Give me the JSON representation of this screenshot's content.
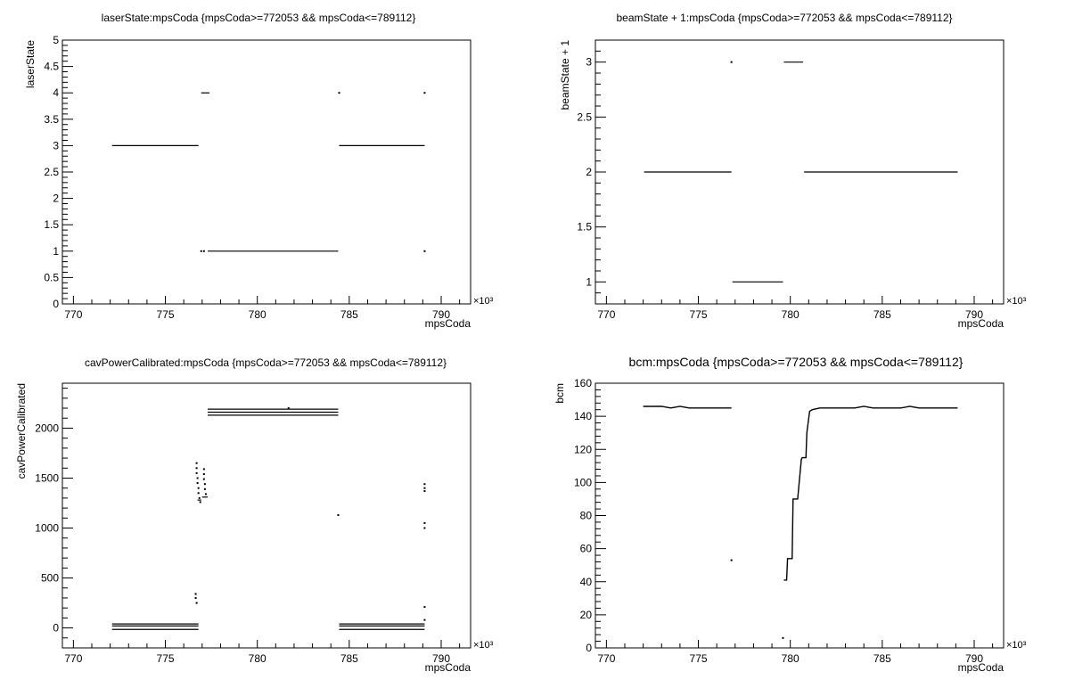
{
  "chart_data": [
    {
      "type": "scatter",
      "title": "laserState:mpsCoda {mpsCoda>=772053 && mpsCoda<=789112}",
      "xlabel": "mpsCoda",
      "ylabel": "laserState",
      "x_multiplier_label": "×10³",
      "xlim": [
        769.4,
        791.6
      ],
      "ylim": [
        0,
        5
      ],
      "xticks": [
        770,
        775,
        780,
        785,
        790
      ],
      "xtick_labels": [
        "770",
        "775",
        "780",
        "785",
        "790"
      ],
      "yticks": [
        0,
        0.5,
        1,
        1.5,
        2,
        2.5,
        3,
        3.5,
        4,
        4.5,
        5
      ],
      "ytick_labels": [
        "0",
        "0.5",
        "1",
        "1.5",
        "2",
        "2.5",
        "3",
        "3.5",
        "4",
        "4.5",
        "5"
      ],
      "segments": [
        {
          "x": [
            772.1,
            776.8
          ],
          "y": 3
        },
        {
          "x": [
            776.95,
            777.4
          ],
          "y": 4
        },
        {
          "x": [
            777.3,
            784.4
          ],
          "y": 1
        },
        {
          "x": [
            784.45,
            789.1
          ],
          "y": 3
        }
      ],
      "points": [
        {
          "x": 776.95,
          "y": 1
        },
        {
          "x": 777.1,
          "y": 1
        },
        {
          "x": 784.45,
          "y": 4
        },
        {
          "x": 789.1,
          "y": 4
        },
        {
          "x": 789.1,
          "y": 1
        }
      ]
    },
    {
      "type": "scatter",
      "title": "beamState + 1:mpsCoda {mpsCoda>=772053 && mpsCoda<=789112}",
      "xlabel": "mpsCoda",
      "ylabel": "beamState + 1",
      "x_multiplier_label": "×10³",
      "xlim": [
        769.4,
        791.6
      ],
      "ylim": [
        0.8,
        3.2
      ],
      "xticks": [
        770,
        775,
        780,
        785,
        790
      ],
      "xtick_labels": [
        "770",
        "775",
        "780",
        "785",
        "790"
      ],
      "yticks": [
        1,
        1.5,
        2,
        2.5,
        3
      ],
      "ytick_labels": [
        "1",
        "1.5",
        "2",
        "2.5",
        "3"
      ],
      "segments": [
        {
          "x": [
            772.05,
            776.8
          ],
          "y": 2
        },
        {
          "x": [
            776.85,
            779.6
          ],
          "y": 1
        },
        {
          "x": [
            779.65,
            780.7
          ],
          "y": 3
        },
        {
          "x": [
            780.75,
            789.1
          ],
          "y": 2
        }
      ],
      "points": [
        {
          "x": 776.8,
          "y": 3
        }
      ]
    },
    {
      "type": "scatter",
      "title": "cavPowerCalibrated:mpsCoda {mpsCoda>=772053 && mpsCoda<=789112}",
      "xlabel": "mpsCoda",
      "ylabel": "cavPowerCalibrated",
      "x_multiplier_label": "×10³",
      "xlim": [
        769.4,
        791.6
      ],
      "ylim": [
        -200,
        2450
      ],
      "xticks": [
        770,
        775,
        780,
        785,
        790
      ],
      "xtick_labels": [
        "770",
        "775",
        "780",
        "785",
        "790"
      ],
      "yticks": [
        0,
        500,
        1000,
        1500,
        2000
      ],
      "ytick_labels": [
        "0",
        "500",
        "1000",
        "1500",
        "2000"
      ],
      "segments": [
        {
          "x": [
            772.1,
            776.8
          ],
          "y": 40
        },
        {
          "x": [
            772.1,
            776.8
          ],
          "y": 20
        },
        {
          "x": [
            772.1,
            776.8
          ],
          "y": -15
        },
        {
          "x": [
            777.3,
            784.4
          ],
          "y": 2190
        },
        {
          "x": [
            777.3,
            784.4
          ],
          "y": 2160
        },
        {
          "x": [
            777.3,
            784.4
          ],
          "y": 2130
        },
        {
          "x": [
            784.45,
            789.1
          ],
          "y": 40
        },
        {
          "x": [
            784.45,
            789.1
          ],
          "y": 20
        },
        {
          "x": [
            784.45,
            789.1
          ],
          "y": -15
        },
        {
          "x": [
            776.75,
            776.95
          ],
          "y": 1280
        },
        {
          "x": [
            777.0,
            777.3
          ],
          "y": 1310
        }
      ],
      "points": [
        {
          "x": 776.7,
          "y": 1650
        },
        {
          "x": 776.7,
          "y": 1600
        },
        {
          "x": 776.7,
          "y": 1550
        },
        {
          "x": 776.75,
          "y": 1500
        },
        {
          "x": 776.75,
          "y": 1450
        },
        {
          "x": 776.8,
          "y": 1400
        },
        {
          "x": 776.8,
          "y": 1350
        },
        {
          "x": 776.85,
          "y": 1300
        },
        {
          "x": 776.9,
          "y": 1260
        },
        {
          "x": 777.1,
          "y": 1590
        },
        {
          "x": 777.1,
          "y": 1540
        },
        {
          "x": 777.1,
          "y": 1490
        },
        {
          "x": 777.15,
          "y": 1440
        },
        {
          "x": 777.15,
          "y": 1390
        },
        {
          "x": 777.2,
          "y": 1340
        },
        {
          "x": 776.65,
          "y": 340
        },
        {
          "x": 776.65,
          "y": 300
        },
        {
          "x": 776.7,
          "y": 250
        },
        {
          "x": 784.4,
          "y": 1130
        },
        {
          "x": 789.1,
          "y": 1440
        },
        {
          "x": 789.1,
          "y": 1400
        },
        {
          "x": 789.1,
          "y": 1370
        },
        {
          "x": 789.1,
          "y": 1050
        },
        {
          "x": 789.1,
          "y": 1000
        },
        {
          "x": 789.1,
          "y": 210
        },
        {
          "x": 789.1,
          "y": 80
        },
        {
          "x": 781.7,
          "y": 2200
        }
      ]
    },
    {
      "type": "scatter",
      "title": "bcm:mpsCoda {mpsCoda>=772053 && mpsCoda<=789112}",
      "xlabel": "mpsCoda",
      "ylabel": "bcm",
      "x_multiplier_label": "×10³",
      "xlim": [
        769.4,
        791.6
      ],
      "ylim": [
        0,
        160
      ],
      "xticks": [
        770,
        775,
        780,
        785,
        790
      ],
      "xtick_labels": [
        "770",
        "775",
        "780",
        "785",
        "790"
      ],
      "yticks": [
        0,
        20,
        40,
        60,
        80,
        100,
        120,
        140,
        160
      ],
      "ytick_labels": [
        "0",
        "20",
        "40",
        "60",
        "80",
        "100",
        "120",
        "140",
        "160"
      ],
      "series": [
        {
          "x": [
            772.0,
            772.5,
            773.0,
            773.5,
            774.0,
            774.5,
            775.0,
            775.5,
            776.0,
            776.5,
            776.8
          ],
          "y": [
            146,
            146,
            146,
            145,
            146,
            145,
            145,
            145,
            145,
            145,
            145
          ]
        },
        {
          "x": [
            779.65,
            779.8,
            779.85,
            780.1,
            780.15,
            780.35,
            780.4,
            780.6,
            780.65,
            780.85,
            780.9,
            781.05,
            781.2,
            781.6,
            782.0,
            782.5,
            783.0,
            783.5,
            784.0,
            784.5,
            785.0,
            785.5,
            786.0,
            786.5,
            787.0,
            787.5,
            788.0,
            788.5,
            789.1
          ],
          "y": [
            41,
            41,
            54,
            54,
            90,
            90,
            90,
            114,
            115,
            115,
            130,
            143,
            144,
            145,
            145,
            145,
            145,
            145,
            146,
            145,
            145,
            145,
            145,
            146,
            145,
            145,
            145,
            145,
            145
          ]
        }
      ],
      "points": [
        {
          "x": 776.8,
          "y": 53
        },
        {
          "x": 779.6,
          "y": 6
        }
      ]
    }
  ]
}
